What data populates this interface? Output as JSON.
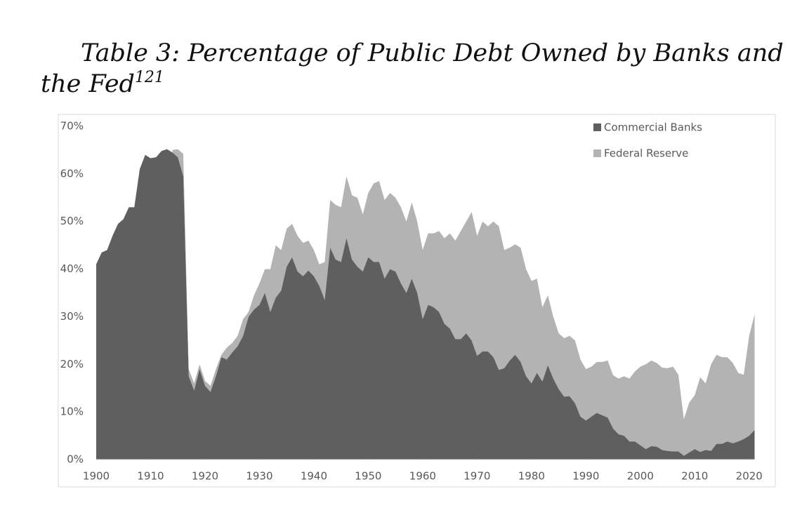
{
  "chart_data": {
    "type": "stacked_area",
    "title": "Table 3: Percentage of Public Debt Owned by Banks and the Fed",
    "title_note": "121",
    "x": [
      1900,
      1901,
      1902,
      1903,
      1904,
      1905,
      1906,
      1907,
      1908,
      1909,
      1910,
      1911,
      1912,
      1913,
      1914,
      1915,
      1916,
      1917,
      1918,
      1919,
      1920,
      1921,
      1922,
      1923,
      1924,
      1925,
      1926,
      1927,
      1928,
      1929,
      1930,
      1931,
      1932,
      1933,
      1934,
      1935,
      1936,
      1937,
      1938,
      1939,
      1940,
      1941,
      1942,
      1943,
      1944,
      1945,
      1946,
      1947,
      1948,
      1949,
      1950,
      1951,
      1952,
      1953,
      1954,
      1955,
      1956,
      1957,
      1958,
      1959,
      1960,
      1961,
      1962,
      1963,
      1964,
      1965,
      1966,
      1967,
      1968,
      1969,
      1970,
      1971,
      1972,
      1973,
      1974,
      1975,
      1976,
      1977,
      1978,
      1979,
      1980,
      1981,
      1982,
      1983,
      1984,
      1985,
      1986,
      1987,
      1988,
      1989,
      1990,
      1991,
      1992,
      1993,
      1994,
      1995,
      1996,
      1997,
      1998,
      1999,
      2000,
      2001,
      2002,
      2003,
      2004,
      2005,
      2006,
      2007,
      2008,
      2009,
      2010,
      2011,
      2012,
      2013,
      2014,
      2015,
      2016,
      2017,
      2018,
      2019,
      2020,
      2021
    ],
    "series": [
      {
        "name": "Commercial Banks",
        "color": "#5f5f5f",
        "values": [
          41,
          43.5,
          44,
          47,
          49.5,
          50.5,
          53,
          53,
          61,
          64,
          63.3,
          63.5,
          64.8,
          65.2,
          64.5,
          63.5,
          59.5,
          17.5,
          14.5,
          19,
          15.5,
          14.2,
          17.5,
          21.5,
          21,
          22.5,
          23.8,
          26,
          30,
          31.5,
          32.5,
          35,
          31,
          34,
          35.5,
          40.5,
          42.5,
          39.5,
          38.5,
          39.7,
          38.5,
          36.5,
          33.5,
          44.5,
          42,
          41.5,
          46.5,
          42,
          40.5,
          39.5,
          42.5,
          41.5,
          41.5,
          38,
          40,
          39.5,
          37,
          35,
          38,
          35,
          29.5,
          32.5,
          32,
          31,
          28.5,
          27.5,
          25.3,
          25.3,
          26.5,
          25,
          21.8,
          22.7,
          22.7,
          21.5,
          18.8,
          19.2,
          20.8,
          22,
          20.5,
          17.5,
          16,
          18.2,
          16.4,
          19.8,
          17,
          14.8,
          13.2,
          13.3,
          11.8,
          9,
          8.2,
          9,
          9.8,
          9.3,
          8.8,
          6.5,
          5.3,
          5,
          3.8,
          3.8,
          3,
          2.2,
          2.8,
          2.7,
          2,
          1.8,
          1.7,
          1.7,
          0.8,
          1.5,
          2.2,
          1.6,
          2,
          1.8,
          3.3,
          3.3,
          3.8,
          3.4,
          3.8,
          4.3,
          5,
          6.2
        ]
      },
      {
        "name": "Federal Reserve",
        "color": "#b3b3b3",
        "values": [
          null,
          null,
          null,
          null,
          null,
          null,
          null,
          null,
          null,
          null,
          null,
          null,
          null,
          null,
          0.5,
          1.7,
          4.7,
          1.5,
          1.5,
          1,
          1,
          1.3,
          1.5,
          0.5,
          2.5,
          2,
          2.2,
          3.5,
          1,
          3,
          4.5,
          5,
          9,
          11,
          8.5,
          8,
          7,
          7.5,
          7,
          6.3,
          5.5,
          4.5,
          8,
          10,
          11.5,
          11.5,
          13,
          13.5,
          14.5,
          12,
          13.5,
          16.5,
          17,
          16.5,
          16,
          15.5,
          16,
          15,
          16,
          15,
          14.5,
          15,
          15.5,
          17,
          18,
          20,
          20.7,
          22.7,
          23.5,
          27,
          25.2,
          27.3,
          26.3,
          28.5,
          30.2,
          24.8,
          23.7,
          23.2,
          24,
          22.5,
          21.5,
          19.8,
          15.6,
          14.7,
          13,
          11.7,
          12.3,
          12.7,
          13.2,
          12,
          10.8,
          10.5,
          10.7,
          11.2,
          12,
          11.2,
          11.7,
          12.5,
          13.2,
          14.7,
          16.5,
          17.8,
          18,
          17.6,
          17.3,
          17.4,
          17.8,
          16.1,
          7.7,
          10.5,
          11.3,
          15.7,
          14,
          18.2,
          18.7,
          18.2,
          17.7,
          16.9,
          14.4,
          13.5,
          21,
          24.3
        ]
      }
    ],
    "xlim": [
      1900,
      2021
    ],
    "xticks": [
      1900,
      1910,
      1920,
      1930,
      1940,
      1950,
      1960,
      1970,
      1980,
      1990,
      2000,
      2010,
      2020
    ],
    "ylim": [
      0,
      70
    ],
    "yticks": [
      {
        "value": 0,
        "label": "0%"
      },
      {
        "value": 10,
        "label": "10%"
      },
      {
        "value": 20,
        "label": "20%"
      },
      {
        "value": 30,
        "label": "30%"
      },
      {
        "value": 40,
        "label": "40%"
      },
      {
        "value": 50,
        "label": "50%"
      },
      {
        "value": 60,
        "label": "60%"
      },
      {
        "value": 70,
        "label": "70%"
      }
    ],
    "legend": "top-right",
    "grid": false
  }
}
